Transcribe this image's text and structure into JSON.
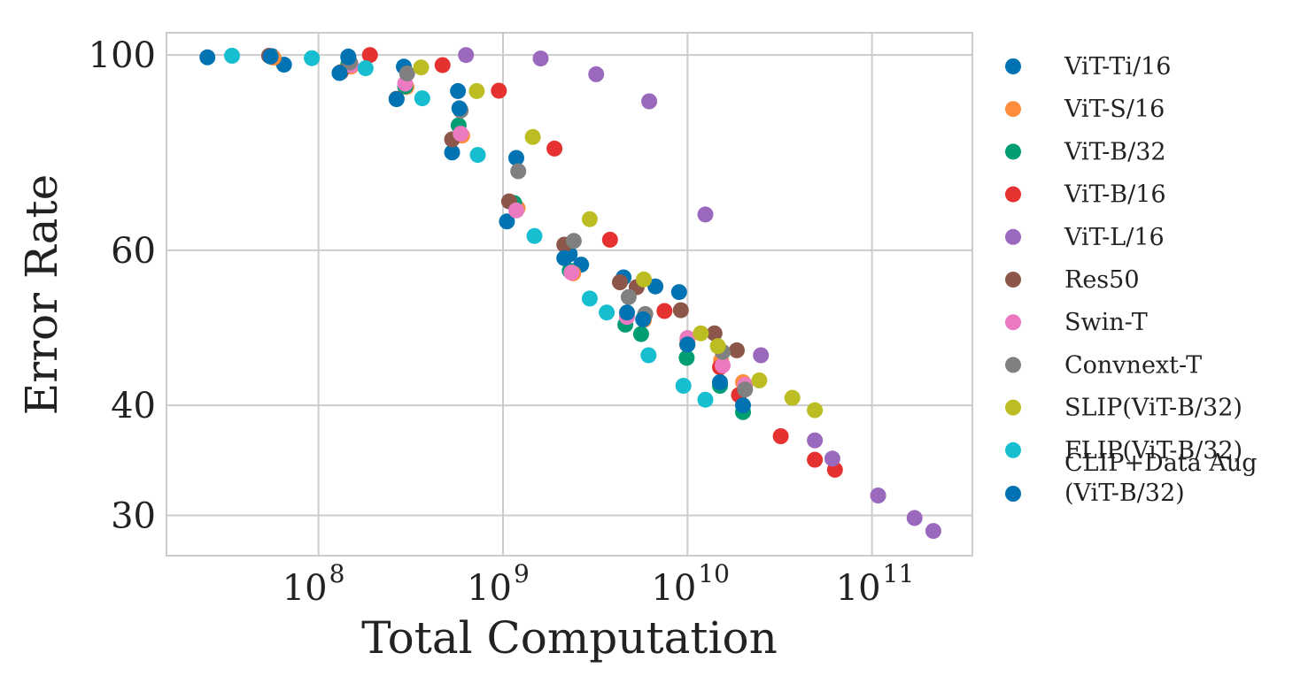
{
  "chart_data": {
    "type": "scatter",
    "title": "",
    "xlabel": "Total Computation",
    "ylabel": "Error Rate",
    "xscale": "log",
    "yscale": "log",
    "xlim": [
      15000000,
      350000000000
    ],
    "ylim": [
      27,
      106
    ],
    "xticks": [
      {
        "value": 100000000,
        "base": "10",
        "exp": "8"
      },
      {
        "value": 1000000000,
        "base": "10",
        "exp": "9"
      },
      {
        "value": 10000000000,
        "base": "10",
        "exp": "10"
      },
      {
        "value": 100000000000,
        "base": "10",
        "exp": "11"
      }
    ],
    "yticks": [
      {
        "value": 30,
        "label": "30"
      },
      {
        "value": 40,
        "label": "40"
      },
      {
        "value": 60,
        "label": "60"
      },
      {
        "value": 100,
        "label": "100"
      }
    ],
    "grid": true,
    "legend_position": "outside-right",
    "series": [
      {
        "name": "ViT-Ti/16",
        "color": "#0173b2",
        "points": [
          [
            25000000,
            99.4
          ],
          [
            56000000,
            99.7
          ],
          [
            65000000,
            97.5
          ],
          [
            145000000,
            99.6
          ],
          [
            290000000,
            97
          ],
          [
            570000000,
            91
          ],
          [
            530000000,
            77.5
          ],
          [
            1180000000,
            76.4
          ],
          [
            1050000000,
            64.7
          ],
          [
            2300000000,
            59.4
          ],
          [
            2650000000,
            57.8
          ],
          [
            4500000000,
            55.9
          ],
          [
            6700000000,
            54.6
          ],
          [
            9000000000,
            53.8
          ]
        ]
      },
      {
        "name": "ViT-S/16",
        "color": "#fd8c3b",
        "points": [
          [
            57000000,
            99.3
          ],
          [
            150000000,
            97
          ],
          [
            300000000,
            92
          ],
          [
            600000000,
            81
          ],
          [
            1200000000,
            67
          ],
          [
            2400000000,
            56.5
          ],
          [
            5800000000,
            50
          ],
          [
            10000000000,
            47.3
          ],
          [
            15200000000,
            45
          ],
          [
            20000000000,
            42.5
          ]
        ]
      },
      {
        "name": "ViT-B/32",
        "color": "#029e73",
        "points": [
          [
            145000000,
            97.6
          ],
          [
            295000000,
            92.1
          ],
          [
            575000000,
            83.2
          ],
          [
            1150000000,
            67.9
          ],
          [
            2300000000,
            56.9
          ],
          [
            4600000000,
            49.4
          ],
          [
            5600000000,
            48.2
          ],
          [
            9900000000,
            45.3
          ],
          [
            15000000000,
            42.1
          ],
          [
            20000000000,
            39.3
          ]
        ]
      },
      {
        "name": "ViT-B/16",
        "color": "#e5312f",
        "points": [
          [
            190000000,
            100
          ],
          [
            470000000,
            97.4
          ],
          [
            950000000,
            91.1
          ],
          [
            1900000000,
            78.3
          ],
          [
            3800000000,
            61.7
          ],
          [
            7500000000,
            51.2
          ],
          [
            15000000000,
            44.2
          ],
          [
            19000000000,
            41.1
          ],
          [
            32000000000,
            36.9
          ],
          [
            49000000000,
            34.7
          ],
          [
            63000000000,
            33.8
          ]
        ]
      },
      {
        "name": "ViT-L/16",
        "color": "#9a68bd",
        "points": [
          [
            630000000,
            100
          ],
          [
            1600000000,
            99.1
          ],
          [
            3200000000,
            95.1
          ],
          [
            6200000000,
            88.6
          ],
          [
            12500000000,
            65.9
          ],
          [
            25000000000,
            45.6
          ],
          [
            49000000000,
            36.5
          ],
          [
            61000000000,
            34.8
          ],
          [
            108000000000,
            31.6
          ],
          [
            170000000000,
            29.8
          ],
          [
            215000000000,
            28.8
          ]
        ]
      },
      {
        "name": "Res50",
        "color": "#8c564b",
        "points": [
          [
            54000000,
            99.8
          ],
          [
            132000000,
            95.6
          ],
          [
            265000000,
            89.2
          ],
          [
            530000000,
            80.2
          ],
          [
            1080000000,
            68.2
          ],
          [
            2150000000,
            60.9
          ],
          [
            4300000000,
            55.2
          ],
          [
            5300000000,
            54.5
          ],
          [
            9200000000,
            51.3
          ],
          [
            14000000000,
            48.3
          ],
          [
            18500000000,
            46.2
          ]
        ]
      },
      {
        "name": "Swin-T",
        "color": "#eb7ac0",
        "points": [
          [
            150000000,
            97.4
          ],
          [
            295000000,
            92.8
          ],
          [
            590000000,
            81.4
          ],
          [
            1180000000,
            66.6
          ],
          [
            2350000000,
            56.6
          ],
          [
            4700000000,
            50.4
          ],
          [
            10000000000,
            47.7
          ],
          [
            15500000000,
            44.4
          ],
          [
            20500000000,
            42.2
          ]
        ]
      },
      {
        "name": "Convnext-T",
        "color": "#808080",
        "points": [
          [
            148000000,
            98.1
          ],
          [
            302000000,
            95.3
          ],
          [
            590000000,
            86.5
          ],
          [
            1210000000,
            73.8
          ],
          [
            2420000000,
            61.5
          ],
          [
            4800000000,
            53.1
          ],
          [
            5900000000,
            50.8
          ],
          [
            9950000000,
            46.9
          ],
          [
            15500000000,
            46
          ],
          [
            20500000000,
            41.7
          ]
        ]
      },
      {
        "name": "SLIP(ViT-B/32)",
        "color": "#bcbd22",
        "points": [
          [
            360000000,
            96.8
          ],
          [
            720000000,
            91
          ],
          [
            1450000000,
            80.7
          ],
          [
            2950000000,
            65.1
          ],
          [
            5800000000,
            55.6
          ],
          [
            11800000000,
            48.3
          ],
          [
            14600000000,
            46.7
          ],
          [
            24500000000,
            42.7
          ],
          [
            37000000000,
            40.8
          ],
          [
            49000000000,
            39.5
          ]
        ]
      },
      {
        "name": "FLIP(ViT-B/32)",
        "color": "#17becf",
        "points": [
          [
            34000000,
            99.8
          ],
          [
            92000000,
            99.2
          ],
          [
            180000000,
            96.6
          ],
          [
            365000000,
            89.3
          ],
          [
            730000000,
            77
          ],
          [
            1480000000,
            62.3
          ],
          [
            2950000000,
            52.9
          ],
          [
            3650000000,
            51
          ],
          [
            6150000000,
            45.6
          ],
          [
            9500000000,
            42.1
          ],
          [
            12500000000,
            40.6
          ]
        ]
      },
      {
        "name": "CLIP+Data Aug\n(ViT-B/32)",
        "color": "#0173b2",
        "points": [
          [
            55000000,
            99.6
          ],
          [
            145000000,
            99.4
          ],
          [
            130000000,
            95.4
          ],
          [
            265000000,
            89.1
          ],
          [
            580000000,
            87
          ],
          [
            2150000000,
            58.8
          ],
          [
            5750000000,
            50.1
          ],
          [
            4700000000,
            51
          ],
          [
            10000000000,
            46.9
          ],
          [
            15000000000,
            42.5
          ],
          [
            20000000000,
            40
          ]
        ]
      }
    ]
  }
}
